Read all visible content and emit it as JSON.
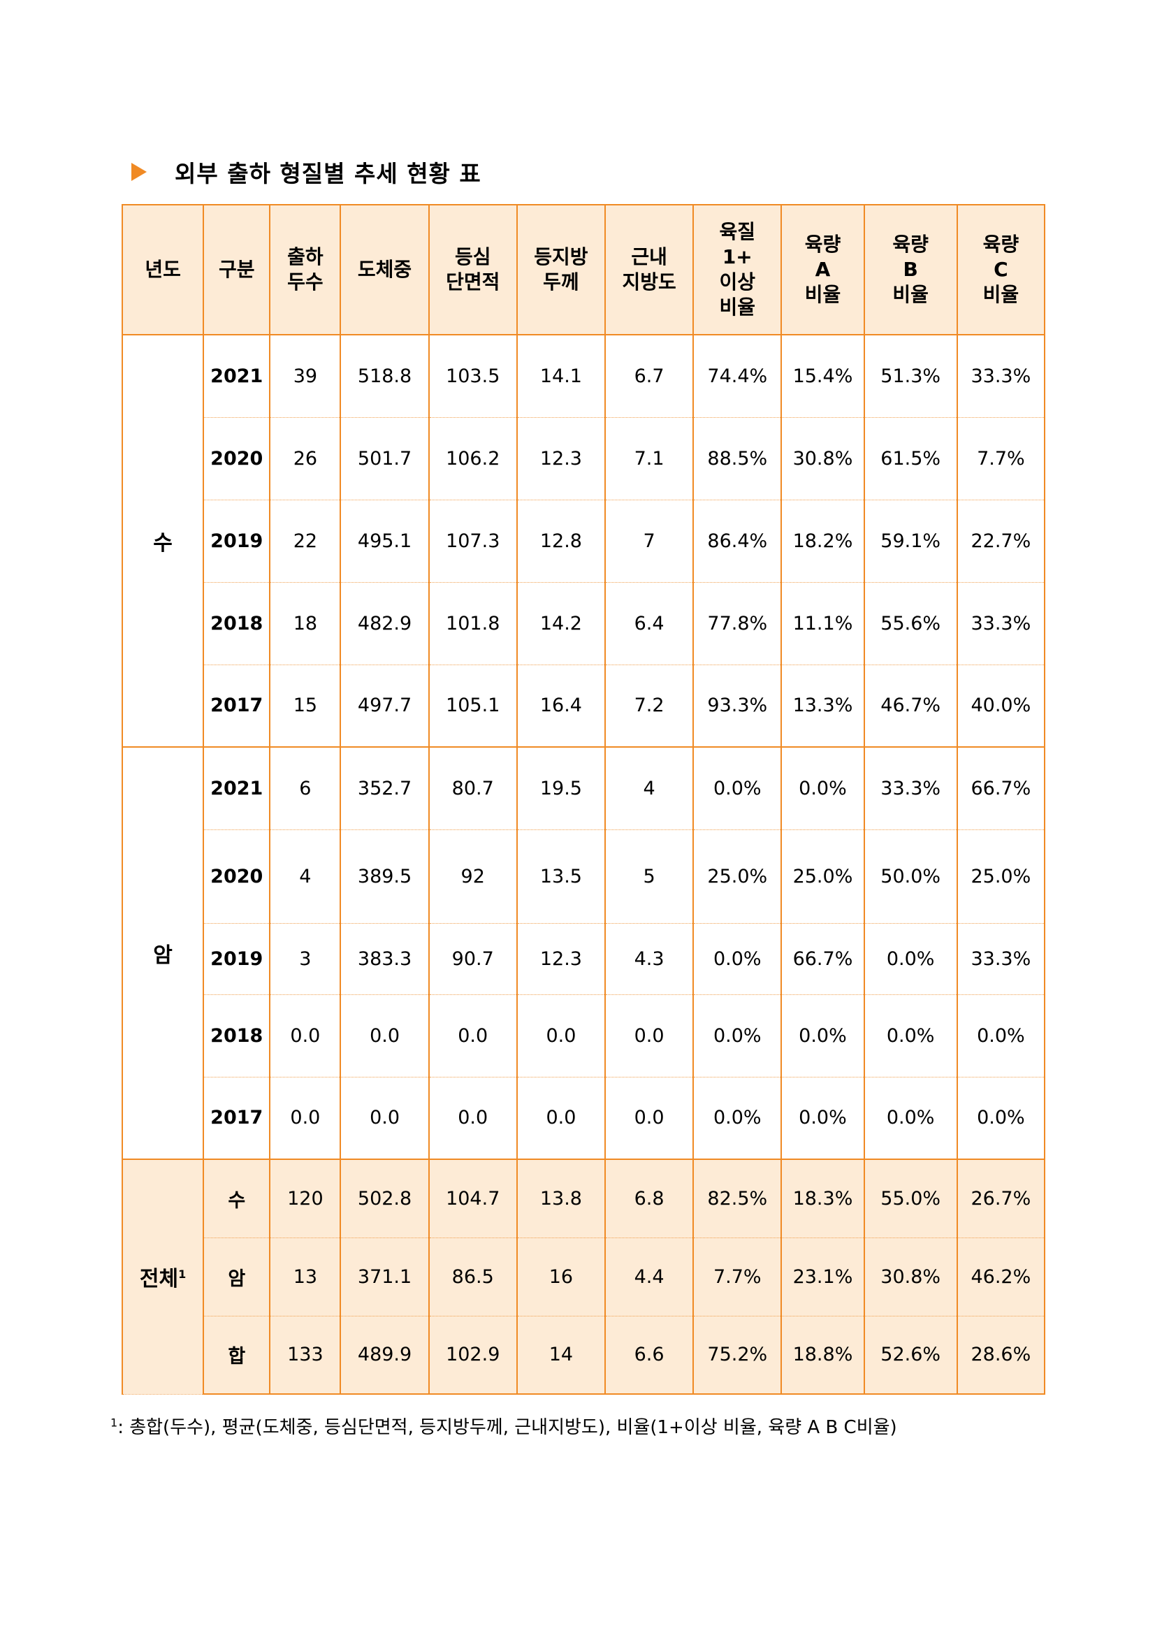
{
  "title": "외부 출하 형질별 추세 현황 표",
  "headers": {
    "year": "년도",
    "category": "구분",
    "count": [
      "출하",
      "두수"
    ],
    "weight": "도체중",
    "area": [
      "등심",
      "단면적"
    ],
    "fat": [
      "등지방",
      "두께"
    ],
    "marbling": [
      "근내",
      "지방도"
    ],
    "grade1": [
      "육질",
      "1+",
      "이상",
      "비율"
    ],
    "yieldA": [
      "육량",
      "A",
      "비율"
    ],
    "yieldB": [
      "육량",
      "B",
      "비율"
    ],
    "yieldC": [
      "육량",
      "C",
      "비율"
    ]
  },
  "groups": {
    "male": "수",
    "female": "암",
    "total": "전체",
    "total_sup": "1"
  },
  "male_rows": [
    {
      "year": "2021",
      "count": "39",
      "weight": "518.8",
      "area": "103.5",
      "fat": "14.1",
      "marbling": "6.7",
      "grade1": "74.4%",
      "yieldA": "15.4%",
      "yieldB": "51.3%",
      "yieldC": "33.3%"
    },
    {
      "year": "2020",
      "count": "26",
      "weight": "501.7",
      "area": "106.2",
      "fat": "12.3",
      "marbling": "7.1",
      "grade1": "88.5%",
      "yieldA": "30.8%",
      "yieldB": "61.5%",
      "yieldC": "7.7%"
    },
    {
      "year": "2019",
      "count": "22",
      "weight": "495.1",
      "area": "107.3",
      "fat": "12.8",
      "marbling": "7",
      "grade1": "86.4%",
      "yieldA": "18.2%",
      "yieldB": "59.1%",
      "yieldC": "22.7%"
    },
    {
      "year": "2018",
      "count": "18",
      "weight": "482.9",
      "area": "101.8",
      "fat": "14.2",
      "marbling": "6.4",
      "grade1": "77.8%",
      "yieldA": "11.1%",
      "yieldB": "55.6%",
      "yieldC": "33.3%"
    },
    {
      "year": "2017",
      "count": "15",
      "weight": "497.7",
      "area": "105.1",
      "fat": "16.4",
      "marbling": "7.2",
      "grade1": "93.3%",
      "yieldA": "13.3%",
      "yieldB": "46.7%",
      "yieldC": "40.0%"
    }
  ],
  "female_rows": [
    {
      "year": "2021",
      "count": "6",
      "weight": "352.7",
      "area": "80.7",
      "fat": "19.5",
      "marbling": "4",
      "grade1": "0.0%",
      "yieldA": "0.0%",
      "yieldB": "33.3%",
      "yieldC": "66.7%"
    },
    {
      "year": "2020",
      "count": "4",
      "weight": "389.5",
      "area": "92",
      "fat": "13.5",
      "marbling": "5",
      "grade1": "25.0%",
      "yieldA": "25.0%",
      "yieldB": "50.0%",
      "yieldC": "25.0%"
    },
    {
      "year": "2019",
      "count": "3",
      "weight": "383.3",
      "area": "90.7",
      "fat": "12.3",
      "marbling": "4.3",
      "grade1": "0.0%",
      "yieldA": "66.7%",
      "yieldB": "0.0%",
      "yieldC": "33.3%"
    },
    {
      "year": "2018",
      "count": "0.0",
      "weight": "0.0",
      "area": "0.0",
      "fat": "0.0",
      "marbling": "0.0",
      "grade1": "0.0%",
      "yieldA": "0.0%",
      "yieldB": "0.0%",
      "yieldC": "0.0%"
    },
    {
      "year": "2017",
      "count": "0.0",
      "weight": "0.0",
      "area": "0.0",
      "fat": "0.0",
      "marbling": "0.0",
      "grade1": "0.0%",
      "yieldA": "0.0%",
      "yieldB": "0.0%",
      "yieldC": "0.0%"
    }
  ],
  "total_rows": [
    {
      "year": "수",
      "count": "120",
      "weight": "502.8",
      "area": "104.7",
      "fat": "13.8",
      "marbling": "6.8",
      "grade1": "82.5%",
      "yieldA": "18.3%",
      "yieldB": "55.0%",
      "yieldC": "26.7%"
    },
    {
      "year": "암",
      "count": "13",
      "weight": "371.1",
      "area": "86.5",
      "fat": "16",
      "marbling": "4.4",
      "grade1": "7.7%",
      "yieldA": "23.1%",
      "yieldB": "30.8%",
      "yieldC": "46.2%"
    },
    {
      "year": "합",
      "count": "133",
      "weight": "489.9",
      "area": "102.9",
      "fat": "14",
      "marbling": "6.6",
      "grade1": "75.2%",
      "yieldA": "18.8%",
      "yieldB": "52.6%",
      "yieldC": "28.6%"
    }
  ],
  "footnote": {
    "marker": "1",
    "text": ": 총합(두수), 평균(도체중, 등심단면적, 등지방두께, 근내지방도), 비율(1+이상 비율, 육량 A B C비율)"
  },
  "colors": {
    "accent": "#f08a24",
    "header_bg": "#fdebd6"
  }
}
